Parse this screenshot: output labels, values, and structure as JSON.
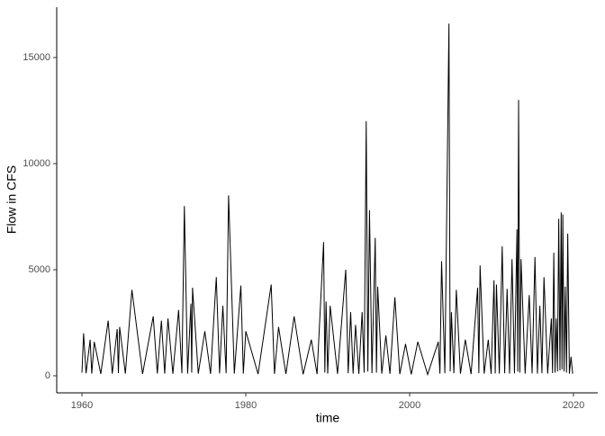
{
  "chart_data": {
    "type": "line",
    "xlabel": "time",
    "ylabel": "Flow in CFS",
    "xlim": [
      1956.92,
      2022.97
    ],
    "ylim": [
      -805,
      17373
    ],
    "xticks": [
      1960,
      1980,
      2000,
      2020
    ],
    "yticks": [
      0,
      5000,
      10000,
      15000
    ],
    "grid": false,
    "series": [
      {
        "color": "#000000",
        "x": [
          1960.0,
          1960.2,
          1960.5,
          1961.0,
          1961.2,
          1961.5,
          1962.3,
          1963.2,
          1963.7,
          1964.3,
          1964.45,
          1964.6,
          1965.3,
          1966.1,
          1967.4,
          1968.7,
          1969.2,
          1969.7,
          1970.1,
          1970.5,
          1971.1,
          1971.8,
          1972.2,
          1972.5,
          1972.9,
          1973.3,
          1973.4,
          1973.5,
          1974.2,
          1975.0,
          1975.7,
          1976.4,
          1976.8,
          1977.2,
          1977.6,
          1977.9,
          1978.6,
          1979.4,
          1979.7,
          1980.0,
          1981.5,
          1983.1,
          1983.5,
          1984.0,
          1984.9,
          1985.9,
          1987.0,
          1988.0,
          1988.7,
          1989.5,
          1989.65,
          1989.8,
          1990.0,
          1990.3,
          1991.2,
          1992.2,
          1992.5,
          1992.8,
          1993.1,
          1993.4,
          1993.8,
          1994.2,
          1994.45,
          1994.7,
          1994.9,
          1995.1,
          1995.4,
          1995.8,
          1995.95,
          1996.1,
          1996.6,
          1997.1,
          1997.6,
          1998.2,
          1998.8,
          1999.5,
          2000.2,
          2001.0,
          2002.2,
          2003.5,
          2003.7,
          2003.9,
          2004.3,
          2004.8,
          2004.95,
          2005.1,
          2005.4,
          2005.7,
          2006.2,
          2006.8,
          2007.5,
          2008.3,
          2008.45,
          2008.6,
          2009.1,
          2009.6,
          2009.95,
          2010.3,
          2010.45,
          2010.6,
          2010.95,
          2011.3,
          2011.6,
          2011.9,
          2012.2,
          2012.5,
          2012.8,
          2013.1,
          2013.2,
          2013.3,
          2013.45,
          2013.6,
          2014.1,
          2014.6,
          2014.95,
          2015.3,
          2015.6,
          2015.9,
          2016.15,
          2016.4,
          2016.85,
          2017.3,
          2017.45,
          2017.6,
          2017.75,
          2017.9,
          2018.05,
          2018.2,
          2018.35,
          2018.5,
          2018.6,
          2018.7,
          2018.85,
          2019.0,
          2019.15,
          2019.3,
          2019.5,
          2019.7,
          2019.9
        ],
        "values": [
          150,
          2000,
          120,
          1700,
          100,
          1600,
          90,
          2600,
          100,
          2200,
          130,
          2300,
          100,
          4050,
          90,
          2800,
          110,
          2600,
          100,
          2700,
          90,
          3100,
          120,
          8000,
          100,
          3400,
          150,
          4150,
          100,
          2100,
          90,
          4650,
          110,
          3300,
          120,
          8500,
          100,
          4250,
          100,
          2100,
          80,
          4300,
          90,
          2300,
          80,
          2800,
          70,
          1700,
          80,
          6300,
          150,
          3500,
          100,
          3300,
          90,
          5000,
          120,
          3000,
          100,
          2400,
          90,
          3000,
          150,
          12000,
          200,
          7800,
          120,
          6500,
          150,
          4200,
          100,
          1900,
          90,
          3700,
          80,
          1500,
          70,
          1600,
          60,
          1600,
          100,
          5400,
          120,
          16600,
          200,
          3000,
          120,
          4050,
          100,
          1700,
          80,
          4150,
          120,
          5200,
          100,
          1700,
          90,
          4500,
          110,
          4300,
          100,
          6100,
          120,
          4100,
          100,
          5500,
          110,
          6900,
          200,
          13000,
          150,
          5500,
          100,
          3800,
          110,
          5600,
          100,
          3300,
          120,
          4650,
          100,
          2700,
          130,
          5800,
          150,
          2700,
          200,
          7400,
          250,
          7700,
          300,
          7600,
          200,
          4200,
          150,
          6700,
          100,
          900,
          100
        ]
      }
    ]
  }
}
